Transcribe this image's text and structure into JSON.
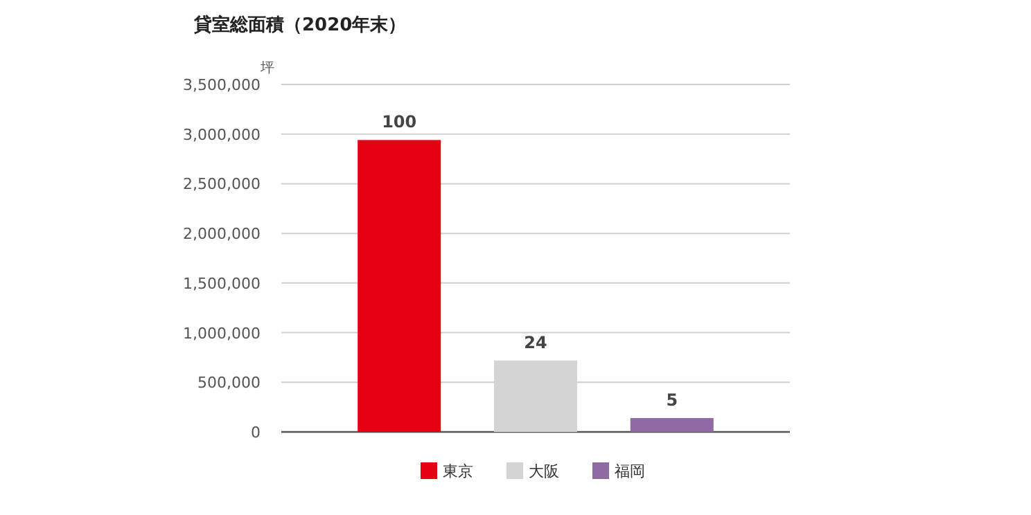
{
  "chart_data": {
    "type": "bar",
    "title": "貸室総面積（2020年末）",
    "ylabel": "坪",
    "categories": [
      null,
      null,
      null
    ],
    "series": [
      {
        "name": "東京",
        "color": "#e50012",
        "values": [
          2940000,
          null,
          null
        ]
      },
      {
        "name": "大阪",
        "color": "#d4d4d4",
        "values": [
          null,
          720000,
          null
        ]
      },
      {
        "name": "福岡",
        "color": "#8f6aa3",
        "values": [
          null,
          null,
          140000
        ]
      }
    ],
    "annotations": [
      {
        "text": "100",
        "y": 2940000
      },
      {
        "text": "24",
        "y": 720000
      },
      {
        "text": "5",
        "y": 140000
      }
    ],
    "ylim": [
      0,
      3500000
    ],
    "yticks": [
      {
        "value": 0,
        "label": "0"
      },
      {
        "value": 500000,
        "label": "500,000"
      },
      {
        "value": 1000000,
        "label": "1,000,000"
      },
      {
        "value": 1500000,
        "label": "1,500,000"
      },
      {
        "value": 2000000,
        "label": "2,000,000"
      },
      {
        "value": 2500000,
        "label": "2,500,000"
      },
      {
        "value": 3000000,
        "label": "3,000,000"
      },
      {
        "value": 3500000,
        "label": "3,500,000"
      }
    ],
    "grid": "y",
    "legend": "bottom"
  }
}
